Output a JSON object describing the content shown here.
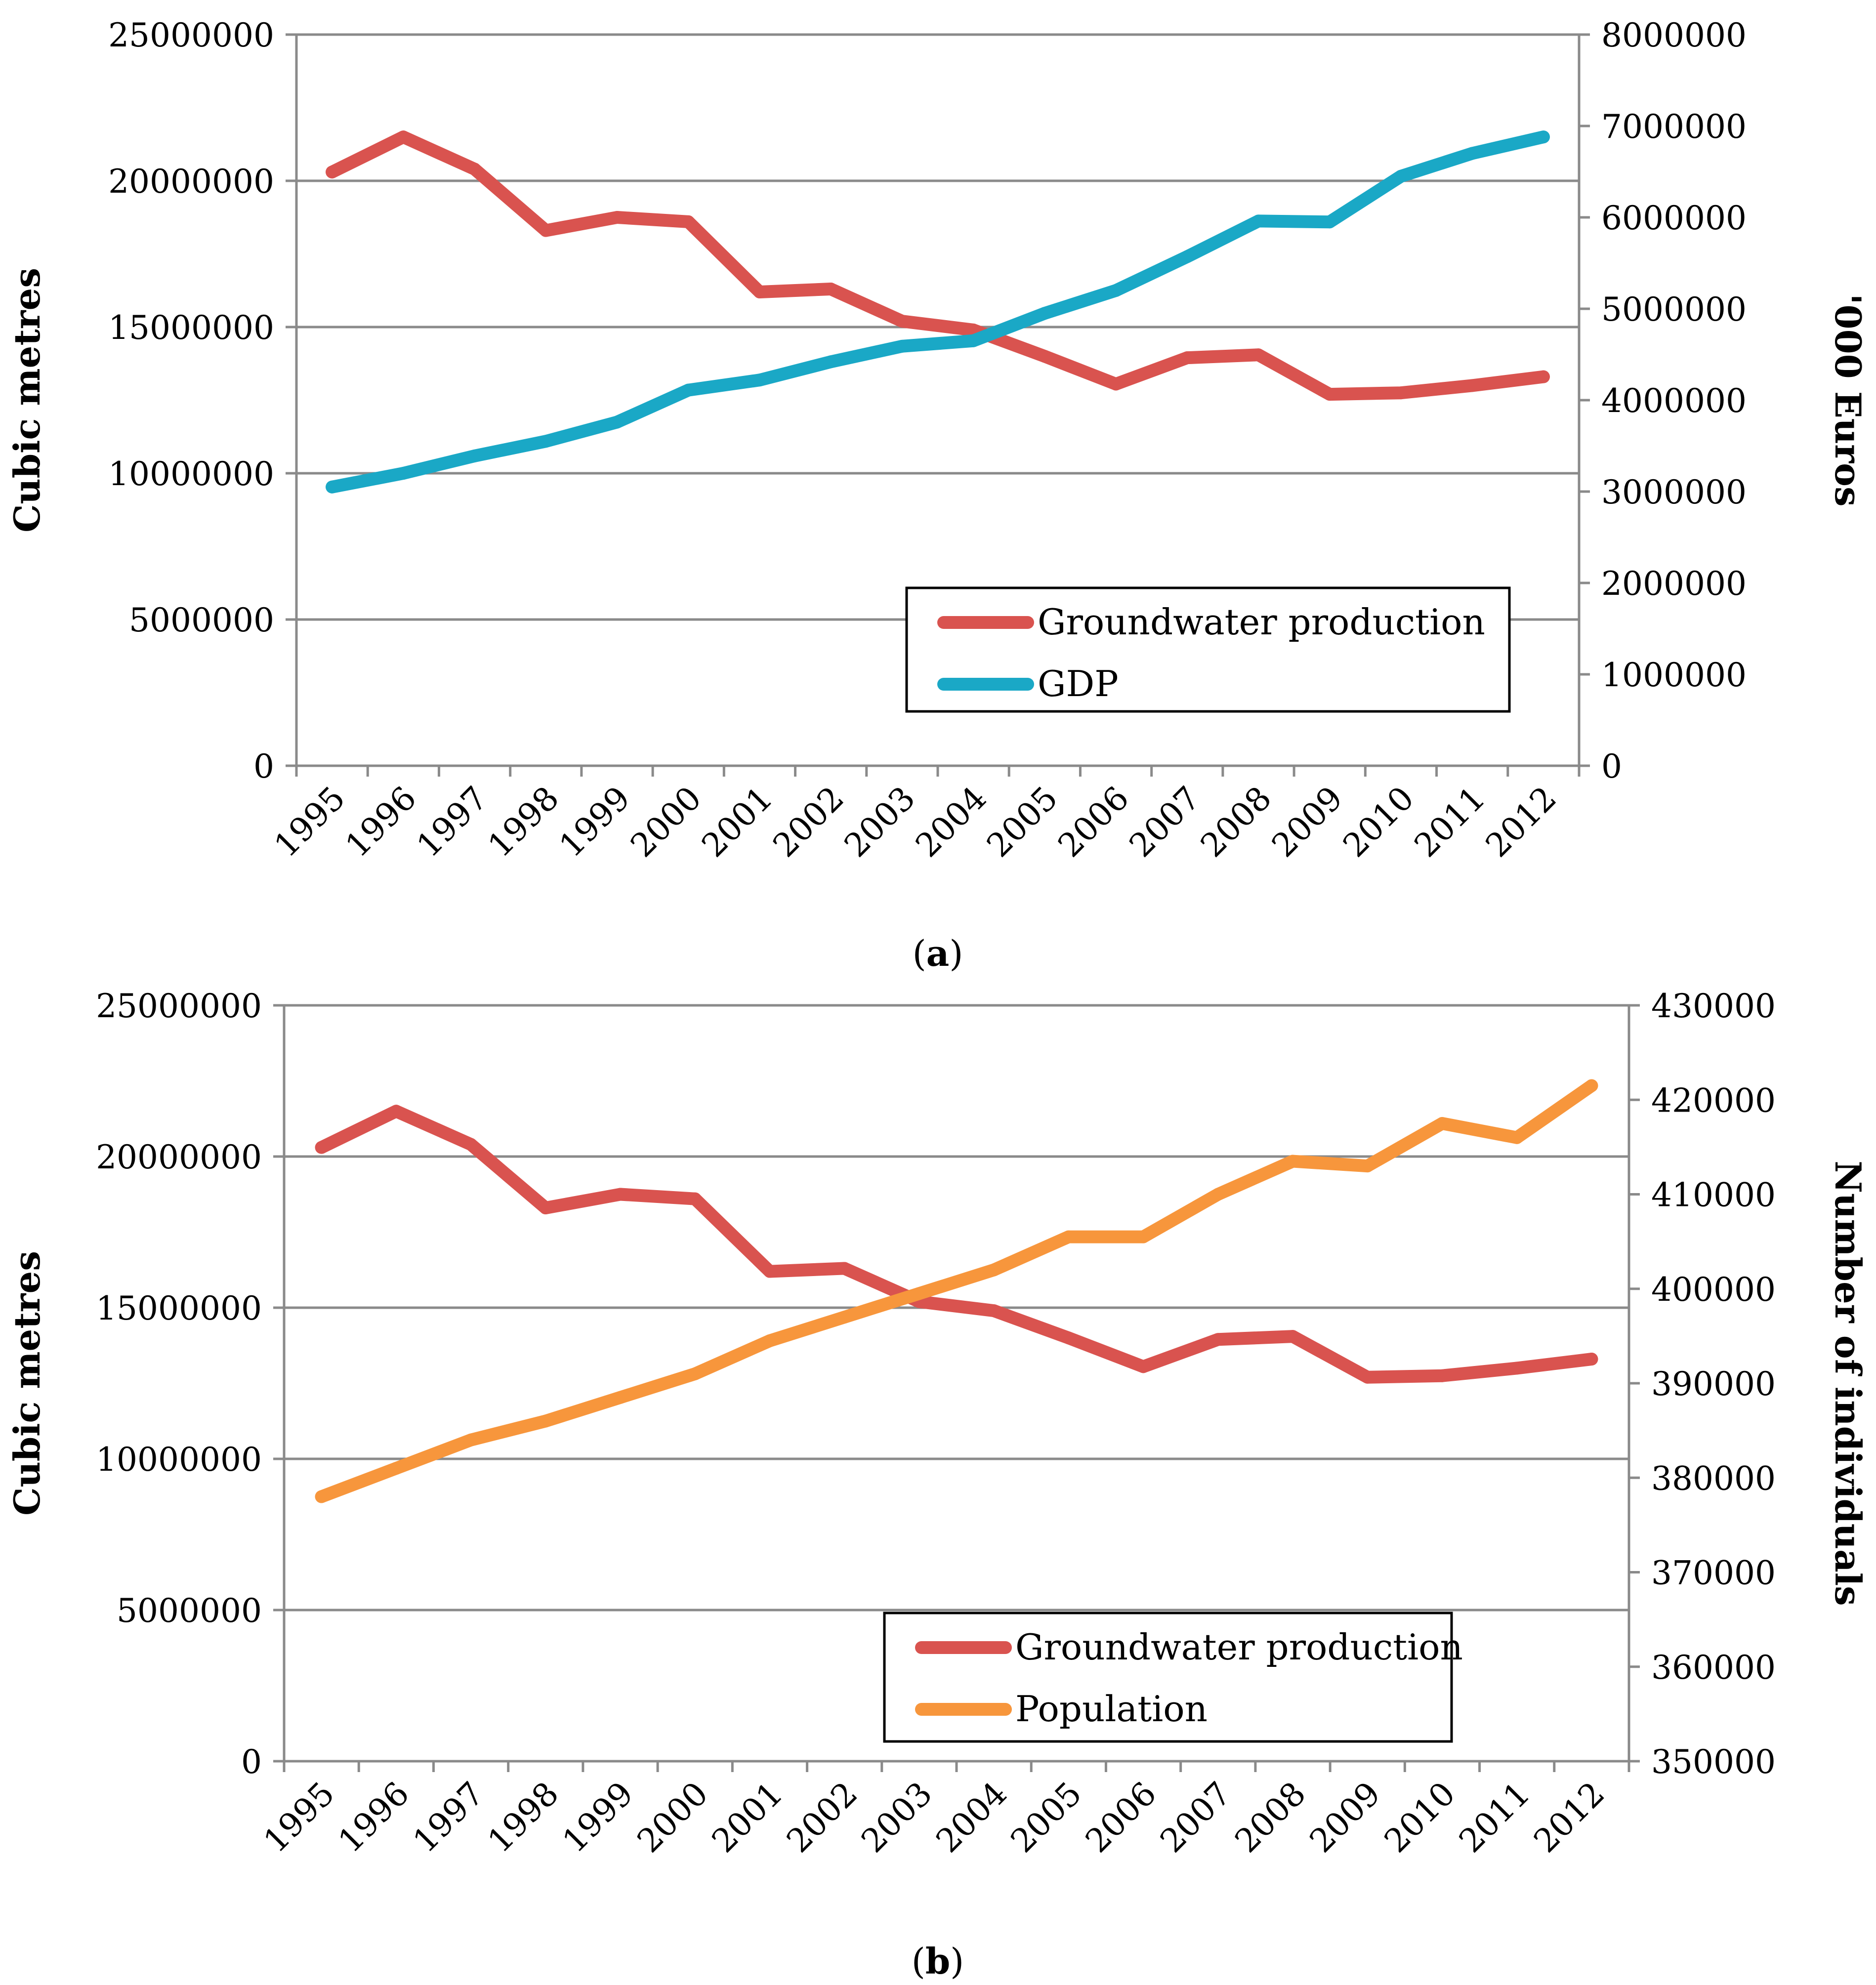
{
  "chart_data": [
    {
      "type": "line",
      "panel_label_bold": "a",
      "categories": [
        "1995",
        "1996",
        "1997",
        "1998",
        "1999",
        "2000",
        "2001",
        "2002",
        "2003",
        "2004",
        "2005",
        "2006",
        "2007",
        "2008",
        "2009",
        "2010",
        "2011",
        "2012"
      ],
      "ylabel": "Cubic metres",
      "ylim": [
        0,
        25000000
      ],
      "yticks": [
        "0",
        "5000000",
        "10000000",
        "15000000",
        "20000000",
        "25000000"
      ],
      "y2label": "'000 Euros",
      "y2lim": [
        0,
        8000000
      ],
      "y2ticks": [
        "0",
        "1000000",
        "2000000",
        "3000000",
        "4000000",
        "5000000",
        "6000000",
        "7000000",
        "8000000"
      ],
      "grid": true,
      "legend_position": "lower-right",
      "series": [
        {
          "name": "Groundwater production",
          "axis": "left",
          "color": "#d9534f",
          "values": [
            20300000,
            21500000,
            20400000,
            18300000,
            18750000,
            18600000,
            16200000,
            16300000,
            15200000,
            14900000,
            14000000,
            13050000,
            13950000,
            14050000,
            12700000,
            12750000,
            13000000,
            13300000
          ]
        },
        {
          "name": "GDP",
          "axis": "right",
          "color": "#1aa8c6",
          "values": [
            3050000,
            3200000,
            3390000,
            3550000,
            3760000,
            4110000,
            4220000,
            4420000,
            4590000,
            4650000,
            4950000,
            5200000,
            5570000,
            5960000,
            5950000,
            6450000,
            6700000,
            6880000
          ]
        }
      ]
    },
    {
      "type": "line",
      "panel_label_bold": "b",
      "categories": [
        "1995",
        "1996",
        "1997",
        "1998",
        "1999",
        "2000",
        "2001",
        "2002",
        "2003",
        "2004",
        "2005",
        "2006",
        "2007",
        "2008",
        "2009",
        "2010",
        "2011",
        "2012"
      ],
      "ylabel": "Cubic metres",
      "ylim": [
        0,
        25000000
      ],
      "yticks": [
        "0",
        "5000000",
        "10000000",
        "15000000",
        "20000000",
        "25000000"
      ],
      "y2label": "Number of individuals",
      "y2lim": [
        350000,
        430000
      ],
      "y2ticks": [
        "350000",
        "360000",
        "370000",
        "380000",
        "390000",
        "400000",
        "410000",
        "420000",
        "430000"
      ],
      "grid": true,
      "legend_position": "lower-center",
      "series": [
        {
          "name": "Groundwater production",
          "axis": "left",
          "color": "#d9534f",
          "values": [
            20300000,
            21500000,
            20400000,
            18300000,
            18750000,
            18600000,
            16200000,
            16300000,
            15200000,
            14900000,
            14000000,
            13050000,
            13950000,
            14050000,
            12700000,
            12750000,
            13000000,
            13300000
          ]
        },
        {
          "name": "Population",
          "axis": "right",
          "color": "#f7963c",
          "values": [
            378000,
            381000,
            384000,
            386000,
            388500,
            391000,
            394500,
            397000,
            399500,
            402000,
            405500,
            405500,
            410000,
            413500,
            413000,
            417500,
            416000,
            421500
          ]
        }
      ]
    }
  ]
}
